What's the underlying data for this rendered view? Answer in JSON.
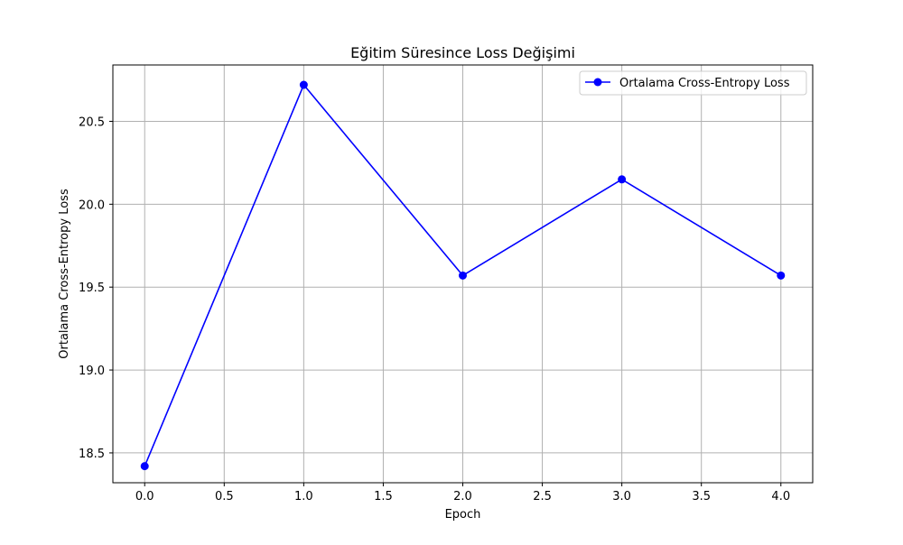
{
  "chart_data": {
    "type": "line",
    "title": "Eğitim Süresince Loss Değişimi",
    "xlabel": "Epoch",
    "ylabel": "Ortalama Cross-Entropy Loss",
    "xlim": [
      -0.2,
      4.2
    ],
    "ylim": [
      18.32,
      20.84
    ],
    "x_ticks": [
      0.0,
      0.5,
      1.0,
      1.5,
      2.0,
      2.5,
      3.0,
      3.5,
      4.0
    ],
    "x_tick_labels": [
      "0.0",
      "0.5",
      "1.0",
      "1.5",
      "2.0",
      "2.5",
      "3.0",
      "3.5",
      "4.0"
    ],
    "y_ticks": [
      18.5,
      19.0,
      19.5,
      20.0,
      20.5
    ],
    "y_tick_labels": [
      "18.5",
      "19.0",
      "19.5",
      "20.0",
      "20.5"
    ],
    "grid": true,
    "legend_position": "upper right",
    "series": [
      {
        "name": "Ortalama Cross-Entropy Loss",
        "color": "#0000ff",
        "marker": "circle",
        "x": [
          0,
          1,
          2,
          3,
          4
        ],
        "y": [
          18.42,
          20.72,
          19.57,
          20.15,
          19.57
        ]
      }
    ]
  }
}
